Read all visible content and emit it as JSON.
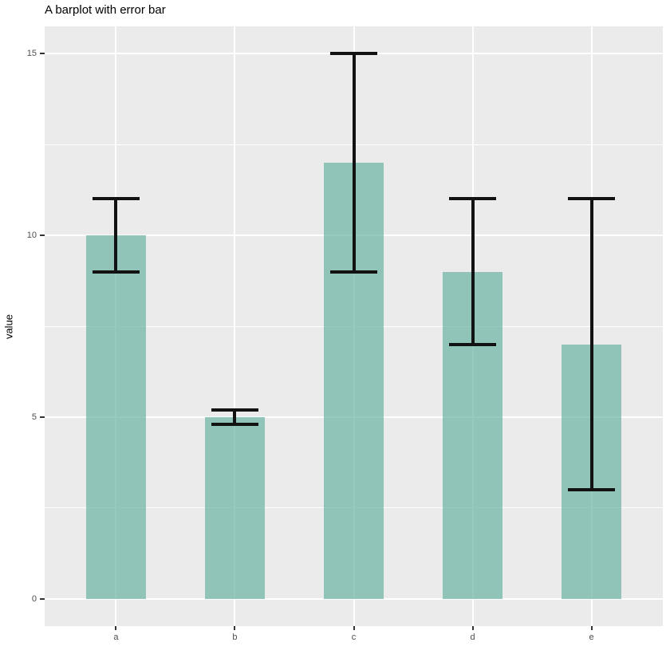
{
  "chart_data": {
    "type": "bar",
    "title": "A barplot with error bar",
    "xlabel": "",
    "ylabel": "value",
    "categories": [
      "a",
      "b",
      "c",
      "d",
      "e"
    ],
    "values": [
      10,
      5,
      12,
      9,
      7
    ],
    "error_bars": {
      "low": [
        9,
        4.8,
        9,
        7,
        3
      ],
      "high": [
        11,
        5.2,
        15,
        11,
        11
      ]
    },
    "y_axis": {
      "ticks": [
        0,
        5,
        10,
        15
      ],
      "minor_ticks": [
        2.5,
        7.5,
        12.5
      ],
      "range": [
        -0.75,
        15.75
      ]
    },
    "grid": "on",
    "legend": "none",
    "style": {
      "bar_fill": "#69b3a2",
      "bar_opacity": 0.7,
      "error_color": "#121212",
      "panel_background": "#EBEBEB",
      "grid_color": "#FFFFFF",
      "axis_text_color": "#4D4D4D",
      "tick_mark_color": "#333333",
      "title_color": "#000000"
    }
  }
}
